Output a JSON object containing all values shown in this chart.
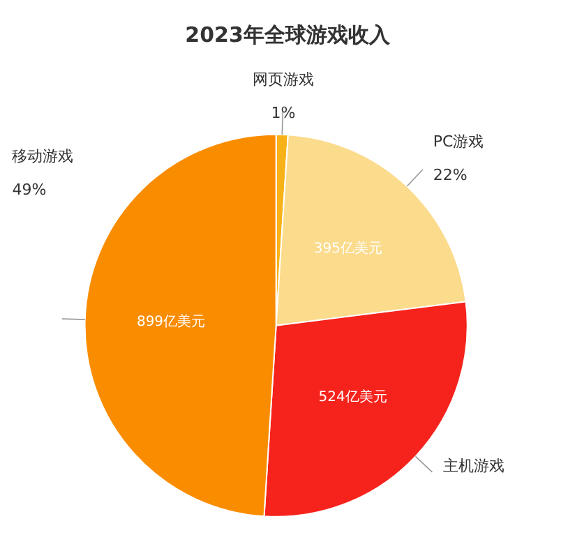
{
  "chart_data": {
    "type": "pie",
    "title": "2023年全球游戏收入",
    "categories": [
      "网页游戏",
      "PC游戏",
      "主机游戏",
      "移动游戏"
    ],
    "values": [
      1,
      22,
      28,
      49
    ],
    "colors": [
      "#f7b218",
      "#fbdb8c",
      "#f5231c",
      "#fa8c00"
    ],
    "value_labels": [
      "1%",
      "22%",
      null,
      "49%"
    ],
    "annotations": [
      {
        "text": "395亿美元",
        "x": "PC游戏"
      },
      {
        "text": "524亿美元",
        "x": "主机游戏"
      },
      {
        "text": "899亿美元",
        "x": "移动游戏"
      }
    ]
  }
}
